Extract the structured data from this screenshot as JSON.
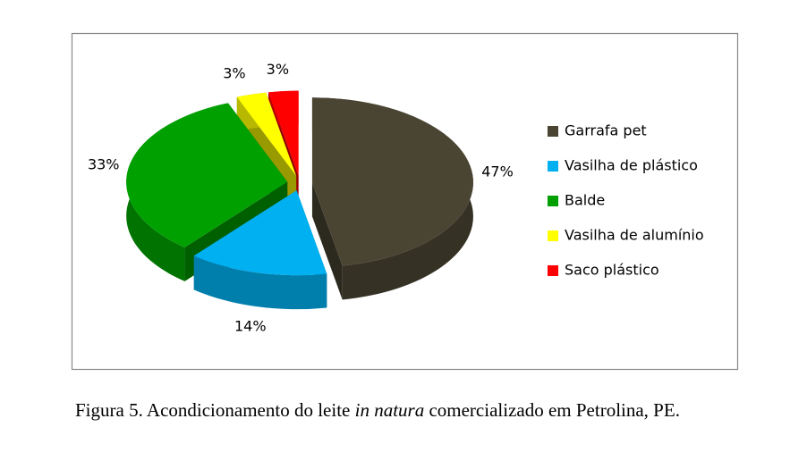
{
  "chart_data": {
    "type": "pie",
    "categories": [
      "Garrafa pet",
      "Vasilha de plástico",
      "Balde",
      "Vasilha de alumínio",
      "Saco plástico"
    ],
    "values": [
      47,
      14,
      33,
      3,
      3
    ],
    "value_labels": [
      "47%",
      "14%",
      "33%",
      "3%",
      "3%"
    ],
    "colors": [
      "#4a4432",
      "#00b0f0",
      "#00a000",
      "#ffff00",
      "#ff0000"
    ],
    "legend": "right"
  },
  "caption": {
    "before": "Figura 5. Acondicionamento do leite ",
    "italic": "in natura",
    "after": " comercializado em Petrolina, PE."
  }
}
